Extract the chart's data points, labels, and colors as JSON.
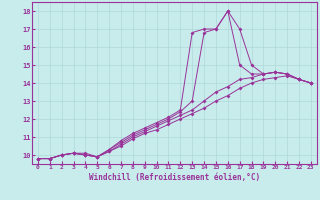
{
  "xlabel": "Windchill (Refroidissement éolien,°C)",
  "xlim": [
    -0.5,
    23.5
  ],
  "ylim": [
    9.5,
    18.5
  ],
  "yticks": [
    10,
    11,
    12,
    13,
    14,
    15,
    16,
    17,
    18
  ],
  "xticks": [
    0,
    1,
    2,
    3,
    4,
    5,
    6,
    7,
    8,
    9,
    10,
    11,
    12,
    13,
    14,
    15,
    16,
    17,
    18,
    19,
    20,
    21,
    22,
    23
  ],
  "bg_color": "#c8ecec",
  "line_color": "#993399",
  "grid_color": "#b0d8d8",
  "lines": [
    [
      9.8,
      9.8,
      10.0,
      10.1,
      10.1,
      9.9,
      10.3,
      10.7,
      11.1,
      11.4,
      11.7,
      12.0,
      12.4,
      13.0,
      16.8,
      17.0,
      18.0,
      15.0,
      14.5,
      14.5,
      14.6,
      14.5,
      14.2,
      14.0
    ],
    [
      9.8,
      9.8,
      10.0,
      10.1,
      10.0,
      9.9,
      10.3,
      10.8,
      11.2,
      11.5,
      11.8,
      12.1,
      12.5,
      16.8,
      17.0,
      17.0,
      18.0,
      17.0,
      15.0,
      14.5,
      14.6,
      14.5,
      14.2,
      14.0
    ],
    [
      9.8,
      9.8,
      10.0,
      10.1,
      10.0,
      9.9,
      10.2,
      10.6,
      11.0,
      11.3,
      11.6,
      11.9,
      12.2,
      12.5,
      13.0,
      13.5,
      13.8,
      14.2,
      14.3,
      14.5,
      14.6,
      14.5,
      14.2,
      14.0
    ],
    [
      9.8,
      9.8,
      10.0,
      10.1,
      10.0,
      9.9,
      10.2,
      10.5,
      10.9,
      11.2,
      11.4,
      11.7,
      12.0,
      12.3,
      12.6,
      13.0,
      13.3,
      13.7,
      14.0,
      14.2,
      14.3,
      14.4,
      14.2,
      14.0
    ]
  ]
}
